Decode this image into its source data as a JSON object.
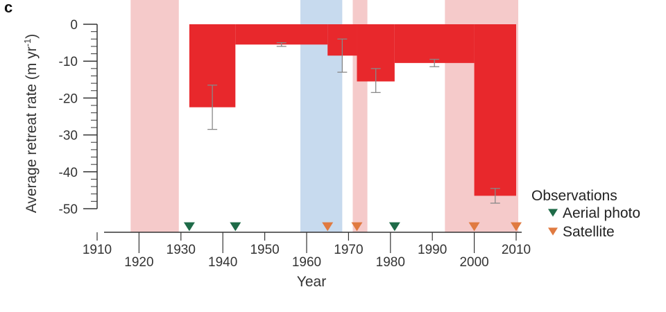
{
  "panel_label": "c",
  "chart_data": {
    "type": "bar",
    "title": "",
    "xlabel": "Year",
    "ylabel_main": "Average retreat rate (m yr",
    "ylabel_sup": "-1",
    "ylabel_close": ")",
    "xlim": [
      1910,
      2010
    ],
    "ylim": [
      -55,
      0
    ],
    "x_ticks": [
      1910,
      1920,
      1930,
      1940,
      1950,
      1960,
      1970,
      1980,
      1990,
      2000,
      2010
    ],
    "x_tick_labels": [
      "1910",
      "1920",
      "1930",
      "1940",
      "1950",
      "1960",
      "1970",
      "1980",
      "1990",
      "2000",
      "2010"
    ],
    "y_ticks": [
      0,
      -10,
      -20,
      -30,
      -40,
      -50
    ],
    "y_tick_labels": [
      "0",
      "-10",
      "-20",
      "-30",
      "-40",
      "-50"
    ],
    "bars": [
      {
        "x_start": 1932,
        "x_end": 1943,
        "value": -22.5,
        "err_low": -28.5,
        "err_high": -16.5
      },
      {
        "x_start": 1943,
        "x_end": 1965,
        "value": -5.5,
        "err_low": -6.0,
        "err_high": -5.0
      },
      {
        "x_start": 1965,
        "x_end": 1972,
        "value": -8.5,
        "err_low": -13.0,
        "err_high": -4.0
      },
      {
        "x_start": 1972,
        "x_end": 1981,
        "value": -15.5,
        "err_low": -18.5,
        "err_high": -12.0
      },
      {
        "x_start": 1981,
        "x_end": 2000,
        "value": -10.5,
        "err_low": -11.5,
        "err_high": -9.5
      },
      {
        "x_start": 2000,
        "x_end": 2010,
        "value": -46.5,
        "err_low": -48.5,
        "err_high": -44.5
      }
    ],
    "shaded_periods": [
      {
        "start": 1918,
        "end": 1929.5,
        "color": "#f2b8b8"
      },
      {
        "start": 1958.5,
        "end": 1968.5,
        "color": "#b4cde8"
      },
      {
        "start": 1971,
        "end": 1974.5,
        "color": "#f2b8b8"
      },
      {
        "start": 1993,
        "end": 2010.5,
        "color": "#f2b8b8"
      }
    ],
    "observations": {
      "legend_title": "Observations",
      "series": [
        {
          "name": "Aerial photo",
          "color": "#1e6b48",
          "years": [
            1932,
            1943,
            1981
          ]
        },
        {
          "name": "Satellite",
          "color": "#e07a40",
          "years": [
            1965,
            1972,
            2000,
            2010
          ]
        }
      ]
    },
    "colors": {
      "bar": "#e8282c",
      "error_bar": "#888888",
      "axis": "#333333"
    },
    "grid": false
  }
}
